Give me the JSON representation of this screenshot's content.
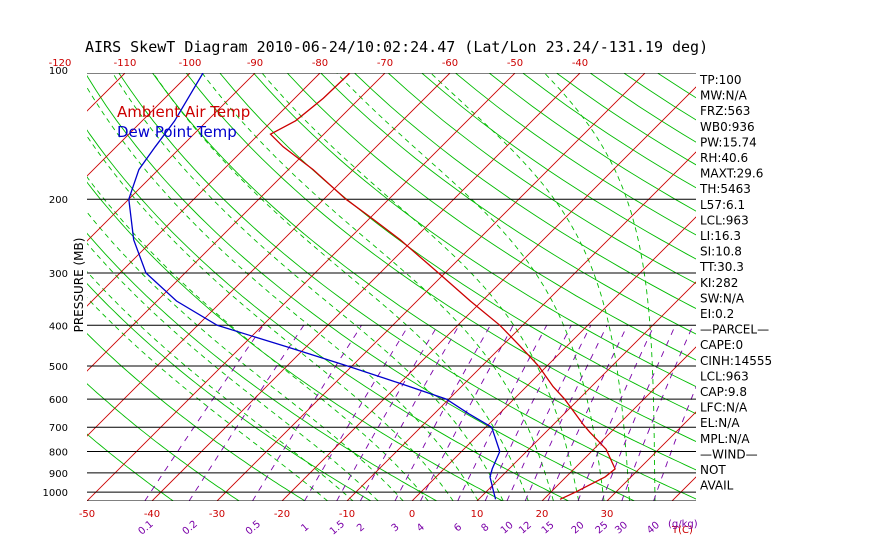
{
  "chart_data": {
    "type": "line",
    "title": "AIRS SkewT Diagram 2010-06-24/10:02:24.47 (Lat/Lon 23.24/-131.19 deg)",
    "ylabel": "PRESSURE (MB)",
    "xlabel": "T(C)",
    "mixing_ratio_unit_label": "(g/kg)",
    "y_scale": "log",
    "ylim": [
      1050,
      100
    ],
    "xlim_bottom": [
      -50,
      40
    ],
    "pressure_ticks": [
      100,
      200,
      300,
      400,
      500,
      600,
      700,
      800,
      900,
      1000
    ],
    "bottom_temp_ticks": [
      -50,
      -40,
      -30,
      -20,
      -10,
      0,
      10,
      20,
      30
    ],
    "top_temp_ticks": [
      -120,
      -110,
      -100,
      -90,
      -80,
      -70,
      -60,
      -50,
      -40
    ],
    "mixing_ratio_ticks": [
      "0.1",
      "0.2",
      "0.5",
      "1",
      "1.5",
      "2",
      "3",
      "4",
      "6",
      "8",
      "10",
      "12",
      "15",
      "20",
      "25",
      "30",
      "40"
    ],
    "legend": [
      {
        "name": "Ambient Air Temp",
        "color": "#cc0000"
      },
      {
        "name": "Dew Point Temp",
        "color": "#0000cc"
      }
    ],
    "series": [
      {
        "name": "Ambient Air Temp",
        "color": "#cc0000",
        "points": [
          {
            "p": 1040,
            "t": 22.5
          },
          {
            "p": 1000,
            "t": 23.8
          },
          {
            "p": 920,
            "t": 26.0
          },
          {
            "p": 880,
            "t": 26.3
          },
          {
            "p": 790,
            "t": 21.9
          },
          {
            "p": 720,
            "t": 16.8
          },
          {
            "p": 690,
            "t": 14.6
          },
          {
            "p": 600,
            "t": 7.8
          },
          {
            "p": 560,
            "t": 4.1
          },
          {
            "p": 500,
            "t": -1.3
          },
          {
            "p": 450,
            "t": -7.0
          },
          {
            "p": 400,
            "t": -13.5
          },
          {
            "p": 350,
            "t": -21.8
          },
          {
            "p": 300,
            "t": -31.0
          },
          {
            "p": 250,
            "t": -42.0
          },
          {
            "p": 220,
            "t": -50.3
          },
          {
            "p": 200,
            "t": -56.6
          },
          {
            "p": 170,
            "t": -66.2
          },
          {
            "p": 150,
            "t": -74.3
          },
          {
            "p": 140,
            "t": -78.2
          },
          {
            "p": 130,
            "t": -76.4
          },
          {
            "p": 115,
            "t": -75.6
          },
          {
            "p": 100,
            "t": -75.4
          }
        ]
      },
      {
        "name": "Dew Point Temp",
        "color": "#0000cc",
        "points": [
          {
            "p": 1040,
            "t": 12.6
          },
          {
            "p": 1000,
            "t": 11.2
          },
          {
            "p": 920,
            "t": 8.3
          },
          {
            "p": 880,
            "t": 7.4
          },
          {
            "p": 800,
            "t": 5.9
          },
          {
            "p": 700,
            "t": 0.9
          },
          {
            "p": 650,
            "t": -4.7
          },
          {
            "p": 600,
            "t": -10.4
          },
          {
            "p": 550,
            "t": -20.0
          },
          {
            "p": 500,
            "t": -30.7
          },
          {
            "p": 450,
            "t": -43.0
          },
          {
            "p": 400,
            "t": -57.0
          },
          {
            "p": 350,
            "t": -67.0
          },
          {
            "p": 300,
            "t": -76.0
          },
          {
            "p": 250,
            "t": -83.0
          },
          {
            "p": 200,
            "t": -90.0
          },
          {
            "p": 170,
            "t": -93.0
          },
          {
            "p": 150,
            "t": -94.0
          },
          {
            "p": 130,
            "t": -95.0
          },
          {
            "p": 100,
            "t": -98.0
          }
        ]
      }
    ],
    "grid": true,
    "legend_position": "top-left",
    "colors": {
      "isotherm": "#cc0000",
      "dry_adiabat": "#00bb00",
      "moist_adiabat": "#00bb00",
      "mixing_ratio": "#7a00a8",
      "isobar": "#000000",
      "temperature": "#cc0000",
      "dewpoint": "#0000cc"
    }
  },
  "stats": [
    "TP:100",
    "MW:N/A",
    "FRZ:563",
    "WB0:936",
    "PW:15.74",
    "RH:40.6",
    "MAXT:29.6",
    "TH:5463",
    "L57:6.1",
    "LCL:963",
    "LI:16.3",
    "SI:10.8",
    "TT:30.3",
    "KI:282",
    "SW:N/A",
    "EI:0.2",
    "—PARCEL—",
    "CAPE:0",
    "CINH:14555",
    "LCL:963",
    "CAP:9.8",
    "LFC:N/A",
    "EL:N/A",
    "MPL:N/A",
    "—WIND—",
    "NOT",
    "AVAIL"
  ]
}
